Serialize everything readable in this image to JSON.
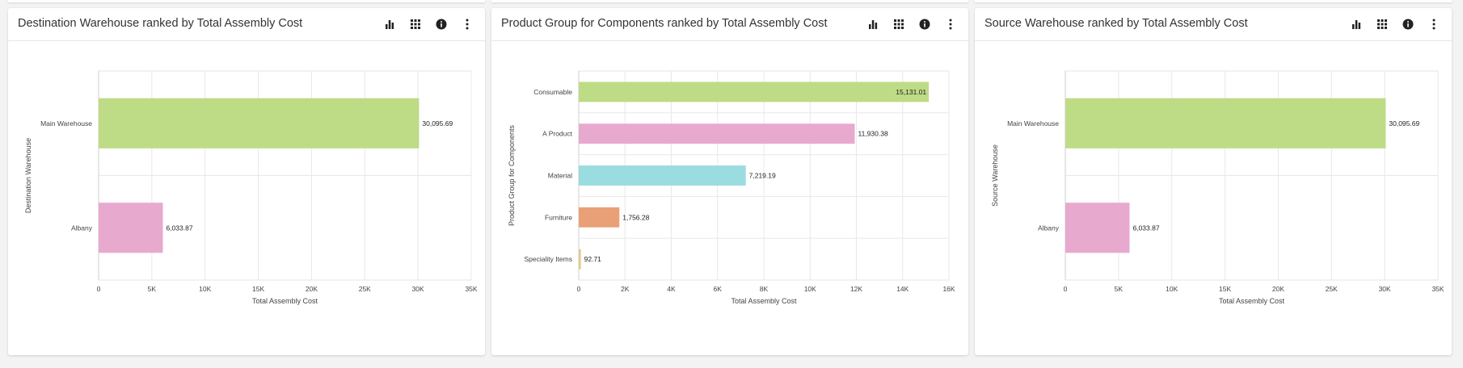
{
  "panels": [
    {
      "title": "Destination Warehouse ranked by Total Assembly Cost",
      "icons": [
        "bar-chart-icon",
        "grid-icon",
        "info-icon",
        "more-vertical-icon"
      ]
    },
    {
      "title": "Product Group for Components ranked by Total Assembly Cost",
      "icons": [
        "bar-chart-icon",
        "grid-icon",
        "info-icon",
        "more-vertical-icon"
      ]
    },
    {
      "title": "Source Warehouse ranked by Total Assembly Cost",
      "icons": [
        "bar-chart-icon",
        "grid-icon",
        "info-icon",
        "more-vertical-icon"
      ]
    }
  ],
  "chart_data": [
    {
      "type": "bar",
      "orientation": "horizontal",
      "title": "Destination Warehouse ranked by Total Assembly Cost",
      "categories": [
        "Main Warehouse",
        "Albany"
      ],
      "values": [
        30095.69,
        6033.87
      ],
      "value_labels": [
        "30,095.69",
        "6,033.87"
      ],
      "colors": [
        "#bedb86",
        "#e8a9cf"
      ],
      "xlabel": "Total Assembly Cost",
      "ylabel": "Destination Warehouse",
      "xlim": [
        0,
        35000
      ],
      "xticks": [
        0,
        5000,
        10000,
        15000,
        20000,
        25000,
        30000,
        35000
      ],
      "xtick_labels": [
        "0",
        "5K",
        "10K",
        "15K",
        "20K",
        "25K",
        "30K",
        "35K"
      ],
      "grid": true
    },
    {
      "type": "bar",
      "orientation": "horizontal",
      "title": "Product Group for Components ranked by Total Assembly Cost",
      "categories": [
        "Consumable",
        "A Product",
        "Material",
        "Furniture",
        "Speciality Items"
      ],
      "values": [
        15131.01,
        11930.38,
        7219.19,
        1756.28,
        92.71
      ],
      "value_labels": [
        "15,131.01",
        "11,930.38",
        "7,219.19",
        "1,756.28",
        "92.71"
      ],
      "colors": [
        "#bedb86",
        "#e8a9cf",
        "#9adce0",
        "#e9a077",
        "#e6c98a"
      ],
      "xlabel": "Total Assembly Cost",
      "ylabel": "Product Group for Components",
      "xlim": [
        0,
        16000
      ],
      "xticks": [
        0,
        2000,
        4000,
        6000,
        8000,
        10000,
        12000,
        14000,
        16000
      ],
      "xtick_labels": [
        "0",
        "2K",
        "4K",
        "6K",
        "8K",
        "10K",
        "12K",
        "14K",
        "16K"
      ],
      "grid": true
    },
    {
      "type": "bar",
      "orientation": "horizontal",
      "title": "Source Warehouse ranked by Total Assembly Cost",
      "categories": [
        "Main Warehouse",
        "Albany"
      ],
      "values": [
        30095.69,
        6033.87
      ],
      "value_labels": [
        "30,095.69",
        "6,033.87"
      ],
      "colors": [
        "#bedb86",
        "#e8a9cf"
      ],
      "xlabel": "Total Assembly Cost",
      "ylabel": "Source Warehouse",
      "xlim": [
        0,
        35000
      ],
      "xticks": [
        0,
        5000,
        10000,
        15000,
        20000,
        25000,
        30000,
        35000
      ],
      "xtick_labels": [
        "0",
        "5K",
        "10K",
        "15K",
        "20K",
        "25K",
        "30K",
        "35K"
      ],
      "grid": true
    }
  ]
}
